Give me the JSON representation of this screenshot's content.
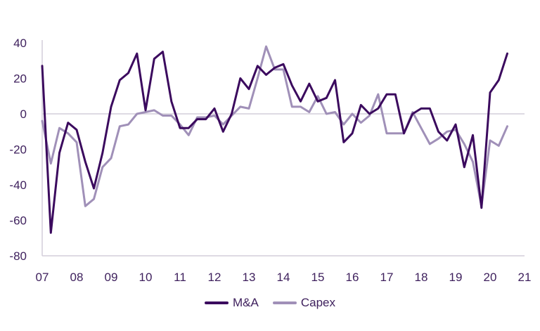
{
  "chart_data": {
    "type": "line",
    "title": "",
    "xlabel": "",
    "ylabel": "",
    "ylim": [
      -80,
      40
    ],
    "xlim": [
      2007,
      2021
    ],
    "yticks": [
      40,
      20,
      0,
      -20,
      -40,
      -60,
      -80
    ],
    "xticks": [
      {
        "value": 2007,
        "label": "07"
      },
      {
        "value": 2008,
        "label": "08"
      },
      {
        "value": 2009,
        "label": "09"
      },
      {
        "value": 2010,
        "label": "10"
      },
      {
        "value": 2011,
        "label": "11"
      },
      {
        "value": 2012,
        "label": "12"
      },
      {
        "value": 2013,
        "label": "13"
      },
      {
        "value": 2014,
        "label": "14"
      },
      {
        "value": 2015,
        "label": "15"
      },
      {
        "value": 2016,
        "label": "16"
      },
      {
        "value": 2017,
        "label": "17"
      },
      {
        "value": 2018,
        "label": "18"
      },
      {
        "value": 2019,
        "label": "19"
      },
      {
        "value": 2020,
        "label": "20"
      },
      {
        "value": 2021,
        "label": "21"
      }
    ],
    "grid": false,
    "legend_position": "bottom",
    "series": [
      {
        "name": "M&A",
        "color": "#3b0a5e",
        "points": [
          [
            2007.0,
            27
          ],
          [
            2007.25,
            -67
          ],
          [
            2007.5,
            -22
          ],
          [
            2007.75,
            -5
          ],
          [
            2008.0,
            -9
          ],
          [
            2008.25,
            -27
          ],
          [
            2008.5,
            -42
          ],
          [
            2008.75,
            -22
          ],
          [
            2009.0,
            4
          ],
          [
            2009.25,
            19
          ],
          [
            2009.5,
            23
          ],
          [
            2009.75,
            34
          ],
          [
            2010.0,
            2
          ],
          [
            2010.25,
            31
          ],
          [
            2010.5,
            35
          ],
          [
            2010.75,
            7
          ],
          [
            2011.0,
            -8
          ],
          [
            2011.25,
            -8
          ],
          [
            2011.5,
            -3
          ],
          [
            2011.75,
            -3
          ],
          [
            2012.0,
            3
          ],
          [
            2012.25,
            -10
          ],
          [
            2012.5,
            0
          ],
          [
            2012.75,
            20
          ],
          [
            2013.0,
            14
          ],
          [
            2013.25,
            27
          ],
          [
            2013.5,
            22
          ],
          [
            2013.75,
            26
          ],
          [
            2014.0,
            28
          ],
          [
            2014.25,
            16
          ],
          [
            2014.5,
            7
          ],
          [
            2014.75,
            17
          ],
          [
            2015.0,
            7
          ],
          [
            2015.25,
            9
          ],
          [
            2015.5,
            19
          ],
          [
            2015.75,
            -16
          ],
          [
            2016.0,
            -11
          ],
          [
            2016.25,
            5
          ],
          [
            2016.5,
            0
          ],
          [
            2016.75,
            3
          ],
          [
            2017.0,
            11
          ],
          [
            2017.25,
            11
          ],
          [
            2017.5,
            -11
          ],
          [
            2017.75,
            0
          ],
          [
            2018.0,
            3
          ],
          [
            2018.25,
            3
          ],
          [
            2018.5,
            -10
          ],
          [
            2018.75,
            -15
          ],
          [
            2019.0,
            -6
          ],
          [
            2019.25,
            -30
          ],
          [
            2019.5,
            -12
          ],
          [
            2019.75,
            -53
          ],
          [
            2020.0,
            12
          ],
          [
            2020.25,
            19
          ],
          [
            2020.5,
            34
          ]
        ]
      },
      {
        "name": "Capex",
        "color": "#a090b8",
        "points": [
          [
            2007.0,
            -4
          ],
          [
            2007.25,
            -28
          ],
          [
            2007.5,
            -8
          ],
          [
            2007.75,
            -11
          ],
          [
            2008.0,
            -16
          ],
          [
            2008.25,
            -52
          ],
          [
            2008.5,
            -48
          ],
          [
            2008.75,
            -30
          ],
          [
            2009.0,
            -25
          ],
          [
            2009.25,
            -7
          ],
          [
            2009.5,
            -6
          ],
          [
            2009.75,
            0
          ],
          [
            2010.0,
            1
          ],
          [
            2010.25,
            2
          ],
          [
            2010.5,
            -1
          ],
          [
            2010.75,
            -1
          ],
          [
            2011.0,
            -6
          ],
          [
            2011.25,
            -12
          ],
          [
            2011.5,
            -2
          ],
          [
            2011.75,
            -2
          ],
          [
            2012.0,
            -1
          ],
          [
            2012.25,
            -6
          ],
          [
            2012.5,
            -1
          ],
          [
            2012.75,
            4
          ],
          [
            2013.0,
            3
          ],
          [
            2013.25,
            20
          ],
          [
            2013.5,
            38
          ],
          [
            2013.75,
            25
          ],
          [
            2014.0,
            25
          ],
          [
            2014.25,
            4
          ],
          [
            2014.5,
            4
          ],
          [
            2014.75,
            1
          ],
          [
            2015.0,
            10
          ],
          [
            2015.25,
            0
          ],
          [
            2015.5,
            1
          ],
          [
            2015.75,
            -6
          ],
          [
            2016.0,
            0
          ],
          [
            2016.25,
            -5
          ],
          [
            2016.5,
            -1
          ],
          [
            2016.75,
            11
          ],
          [
            2017.0,
            -11
          ],
          [
            2017.25,
            -11
          ],
          [
            2017.5,
            -11
          ],
          [
            2017.75,
            1
          ],
          [
            2018.0,
            -8
          ],
          [
            2018.25,
            -17
          ],
          [
            2018.5,
            -14
          ],
          [
            2018.75,
            -10
          ],
          [
            2019.0,
            -9
          ],
          [
            2019.25,
            -17
          ],
          [
            2019.5,
            -27
          ],
          [
            2019.75,
            -52
          ],
          [
            2020.0,
            -15
          ],
          [
            2020.25,
            -18
          ],
          [
            2020.5,
            -7
          ]
        ]
      }
    ]
  }
}
